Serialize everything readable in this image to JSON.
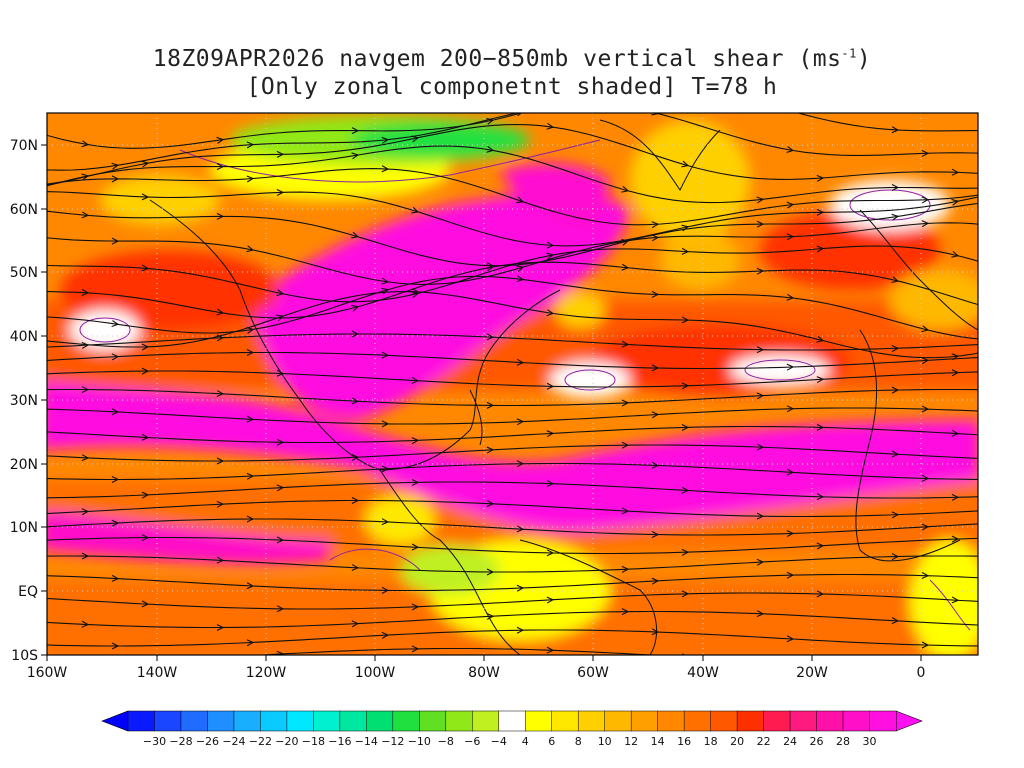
{
  "title": {
    "line1": "18Z09APR2026 navgem 200−850mb vertical shear (ms",
    "line1_sup": "-1",
    "line1_end": ")",
    "line2": "[Only zonal componetnt shaded] T=78 h"
  },
  "axes": {
    "lon_labels": [
      "160W",
      "140W",
      "120W",
      "100W",
      "80W",
      "60W",
      "40W",
      "20W",
      "0"
    ],
    "lat_labels": [
      "70N",
      "60N",
      "50N",
      "40N",
      "30N",
      "20N",
      "10N",
      "EQ",
      "10S"
    ],
    "lon_range": [
      -160,
      10
    ],
    "lat_range": [
      -10,
      75
    ]
  },
  "colorbar": {
    "labels": [
      "-30",
      "-28",
      "-26",
      "-24",
      "-22",
      "-20",
      "-18",
      "-16",
      "-14",
      "-12",
      "-10",
      "-8",
      "-6",
      "-4",
      "4",
      "6",
      "8",
      "10",
      "12",
      "14",
      "16",
      "18",
      "20",
      "22",
      "24",
      "26",
      "28",
      "30"
    ],
    "colors": [
      "#0a1aff",
      "#1a46ff",
      "#1f6cff",
      "#1f8eff",
      "#1aaeff",
      "#0acaff",
      "#00e8ff",
      "#00f0d0",
      "#00e8a0",
      "#00e070",
      "#20e040",
      "#60e020",
      "#90e818",
      "#c0f020",
      "#ffffff",
      "#ffff00",
      "#ffe800",
      "#ffd000",
      "#ffb800",
      "#ffa000",
      "#ff8800",
      "#ff7000",
      "#ff5800",
      "#ff3000",
      "#ff1a50",
      "#ff1a80",
      "#ff10a8",
      "#ff10c8",
      "#ff10e0"
    ]
  }
}
